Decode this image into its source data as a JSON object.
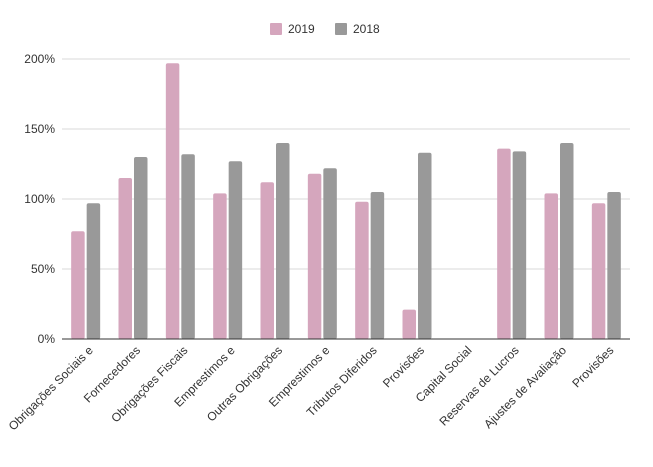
{
  "chart_data": {
    "type": "bar",
    "categories": [
      "Obrigações Sociais e",
      "Fornecedores",
      "Obrigações Fiscais",
      "Emprestimos e",
      "Outras Obrigações",
      "Emprestimos e",
      "Tributos Diferidos",
      "Provisões",
      "Capital Social",
      "Reservas de Lucros",
      "Ajustes de Avaliação",
      "Provisões"
    ],
    "series": [
      {
        "name": "2019",
        "color": "#d5a6bd",
        "values": [
          77,
          115,
          197,
          104,
          112,
          118,
          98,
          21,
          0,
          136,
          104,
          97
        ]
      },
      {
        "name": "2018",
        "color": "#999999",
        "values": [
          97,
          130,
          132,
          127,
          140,
          122,
          105,
          133,
          0,
          134,
          140,
          105
        ]
      }
    ],
    "yticks": [
      "0%",
      "50%",
      "100%",
      "150%",
      "200%"
    ],
    "ylim": [
      0,
      200
    ],
    "legend_position": "top-center",
    "grid": true,
    "title": "",
    "xlabel": "",
    "ylabel": ""
  }
}
